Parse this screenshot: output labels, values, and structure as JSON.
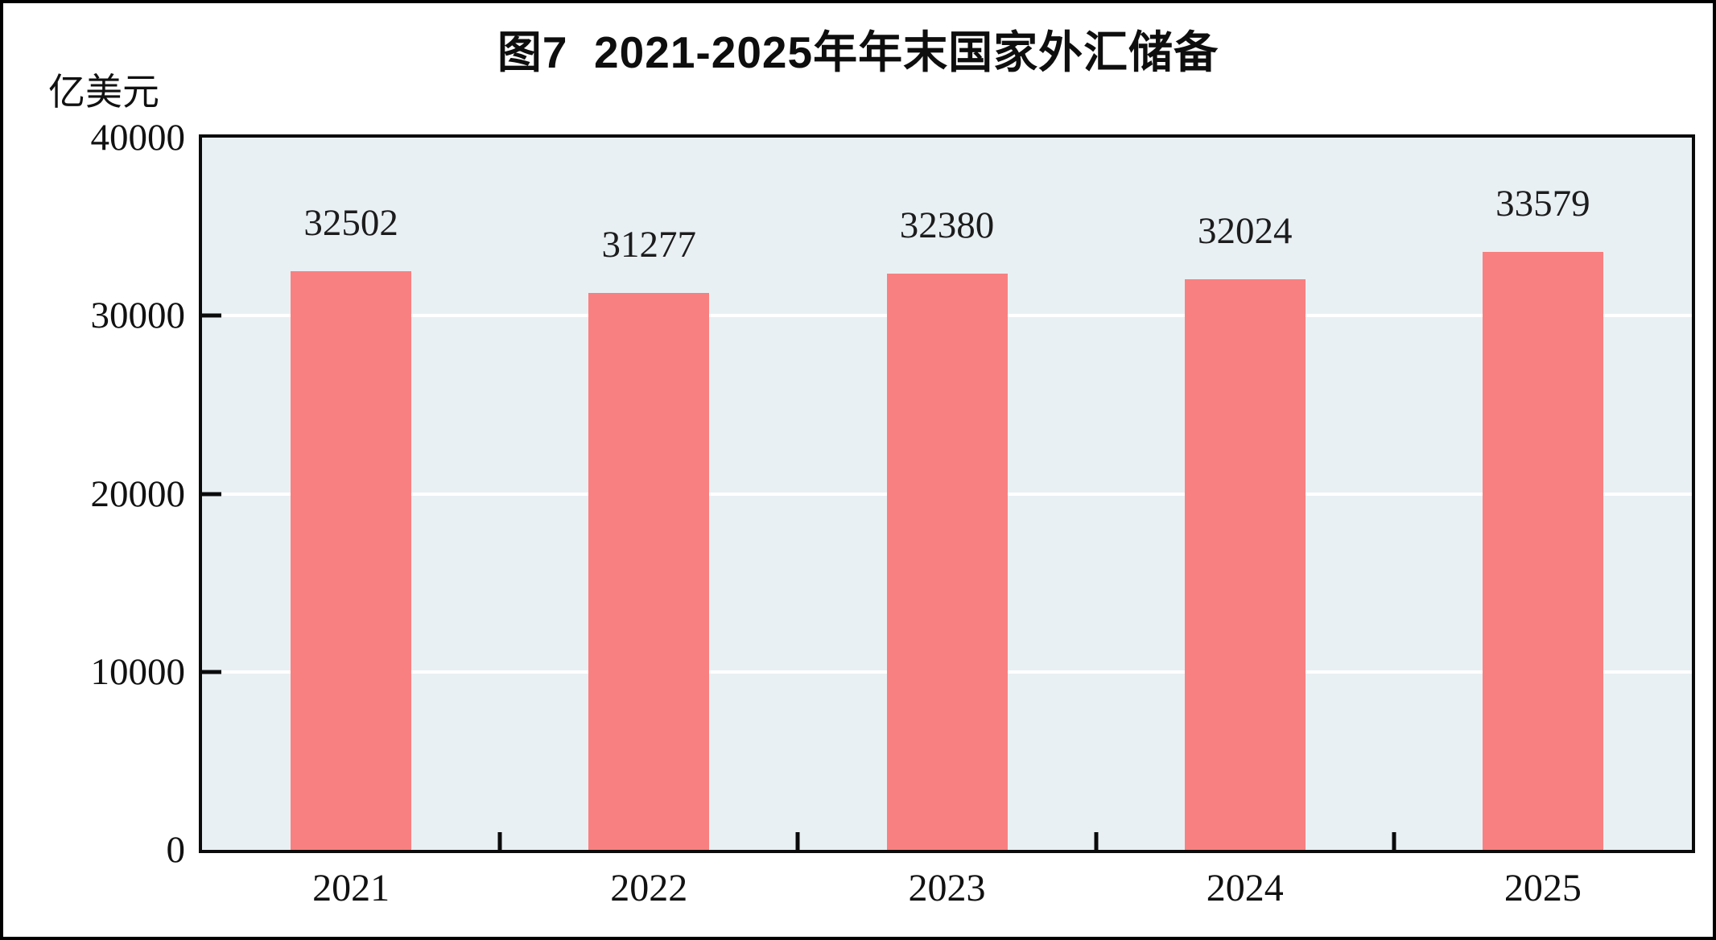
{
  "figure": {
    "title": "图7  2021-2025年年末国家外汇储备",
    "unit_label": "亿美元"
  },
  "chart_data": {
    "type": "bar",
    "title": "图7  2021-2025年年末国家外汇储备",
    "categories": [
      "2021",
      "2022",
      "2023",
      "2024",
      "2025"
    ],
    "values": [
      32502,
      31277,
      32380,
      32024,
      33579
    ],
    "data_labels": [
      "32502",
      "31277",
      "32380",
      "32024",
      "33579"
    ],
    "xlabel": "",
    "ylabel": "亿美元",
    "ylim": [
      0,
      40000
    ],
    "yticks": [
      0,
      10000,
      20000,
      30000,
      40000
    ],
    "grid": true,
    "gridlines_at": [
      10000,
      20000,
      30000
    ],
    "legend": "none",
    "bar_color": "#f98080",
    "plot_background": "#e9f0f4",
    "gridline_color": "#ffffff",
    "axis_color": "#0b0b0b"
  }
}
